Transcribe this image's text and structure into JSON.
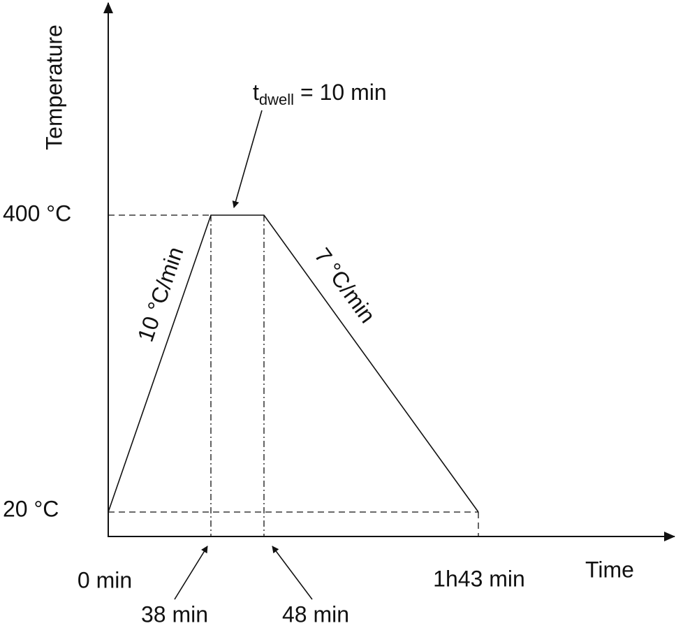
{
  "axes": {
    "y_label": "Temperature",
    "x_label": "Time"
  },
  "y_levels": [
    "400 °C",
    "20 °C"
  ],
  "x_marks": [
    "0 min",
    "38 min",
    "48 min",
    "1h43 min"
  ],
  "annotations": {
    "dwell_symbol": "t",
    "dwell_subscript": "dwell",
    "dwell_text": "= 10 min",
    "heating_rate": "10 °C/min",
    "cooling_rate": "7 °C/min"
  }
}
